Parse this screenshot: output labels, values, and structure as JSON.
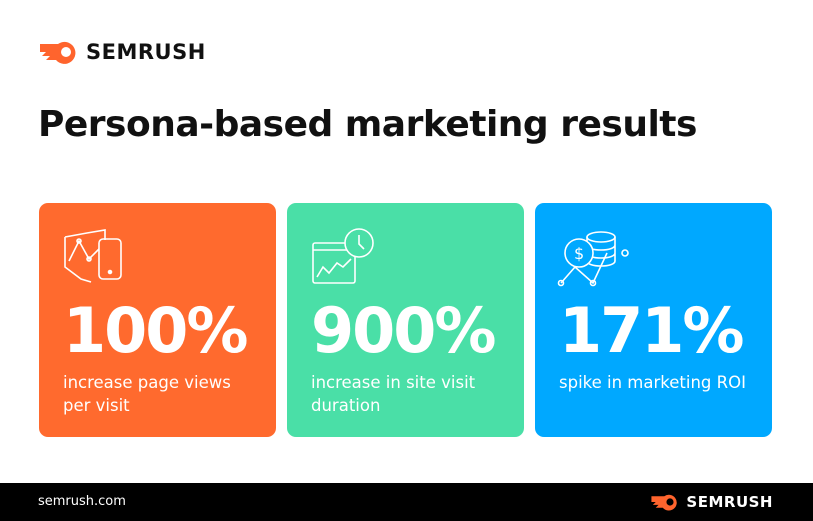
{
  "brand": {
    "name": "SEMRUSH",
    "accent": "#FF642D"
  },
  "title": "Persona-based marketing results",
  "cards": [
    {
      "value": "100%",
      "caption": "increase page views per visit",
      "color": "#FF6A2E",
      "icon": "devices-chart-icon"
    },
    {
      "value": "900%",
      "caption": "increase in site visit duration",
      "color": "#4ADFA7",
      "icon": "browser-clock-icon"
    },
    {
      "value": "171%",
      "caption": "spike in marketing ROI",
      "color": "#00A8FF",
      "icon": "money-database-chart-icon"
    }
  ],
  "footer": {
    "url": "semrush.com",
    "brand": "SEMRUSH"
  }
}
